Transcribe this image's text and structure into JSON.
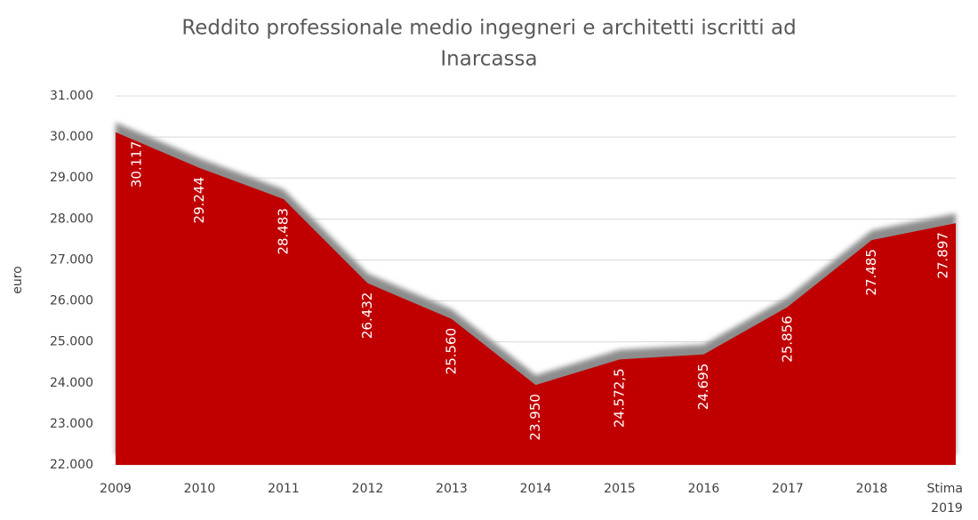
{
  "chart_data": {
    "type": "area",
    "title_lines": [
      "Reddito professionale medio ingegneri e architetti iscritti ad",
      "Inarcassa"
    ],
    "ylabel": "euro",
    "categories": [
      "2009",
      "2010",
      "2011",
      "2012",
      "2013",
      "2014",
      "2015",
      "2016",
      "2017",
      "2018",
      "Stima 2019"
    ],
    "values": [
      30117,
      29244,
      28483,
      26432,
      25560,
      23950,
      24572.5,
      24695,
      25856,
      27485,
      27897
    ],
    "value_labels": [
      "30.117",
      "29.244",
      "28.483",
      "26.432",
      "25.560",
      "23.950",
      "24.572,5",
      "24.695",
      "25.856",
      "27.485",
      "27.897"
    ],
    "color": "#c00000",
    "shadow_color": "#8c8c8c",
    "ylim": [
      22000,
      31000
    ],
    "yticks": [
      {
        "value": 22000,
        "label": "22.000"
      },
      {
        "value": 23000,
        "label": "23.000"
      },
      {
        "value": 24000,
        "label": "24.000"
      },
      {
        "value": 25000,
        "label": "25.000"
      },
      {
        "value": 26000,
        "label": "26.000"
      },
      {
        "value": 27000,
        "label": "27.000"
      },
      {
        "value": 28000,
        "label": "28.000"
      },
      {
        "value": 29000,
        "label": "29.000"
      },
      {
        "value": 30000,
        "label": "30.000"
      },
      {
        "value": 31000,
        "label": "31.000"
      }
    ],
    "grid": true
  }
}
